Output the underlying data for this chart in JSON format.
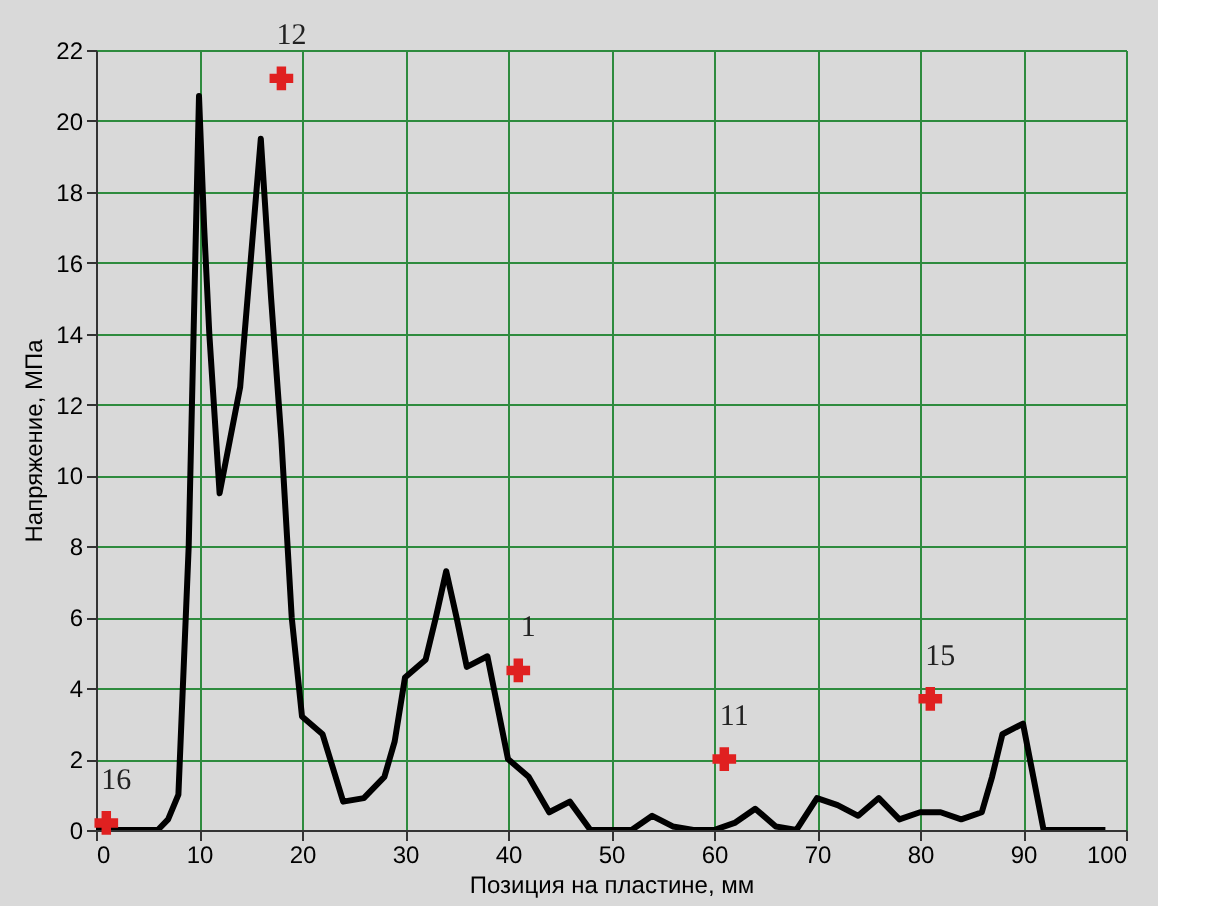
{
  "chart_data": {
    "type": "line",
    "xlabel": "Позиция на пластине, мм",
    "ylabel": "Напряжение, МПа",
    "xlim": [
      0,
      100
    ],
    "ylim": [
      0,
      22
    ],
    "xticks": [
      0,
      10,
      20,
      30,
      40,
      50,
      60,
      70,
      80,
      90,
      100
    ],
    "yticks": [
      0,
      2,
      4,
      6,
      8,
      10,
      12,
      14,
      16,
      18,
      20,
      22
    ],
    "grid": true,
    "series": [
      {
        "color": "#000000",
        "marker": "none",
        "line_style": "solid",
        "x": [
          0,
          2,
          4,
          6,
          7,
          8,
          9,
          10,
          10.5,
          11,
          12,
          13,
          14,
          15,
          16,
          17,
          18,
          19,
          20,
          22,
          24,
          26,
          28,
          29,
          30,
          32,
          33,
          34,
          35,
          36,
          38,
          40,
          42,
          44,
          46,
          48,
          50,
          52,
          54,
          56,
          58,
          60,
          62,
          64,
          66,
          68,
          70,
          72,
          74,
          76,
          78,
          80,
          82,
          84,
          86,
          87,
          88,
          90,
          91,
          92,
          94,
          96,
          98
        ],
        "values": [
          0,
          0,
          0,
          0,
          0.3,
          1,
          8,
          20.7,
          17,
          14,
          9.5,
          11,
          12.5,
          16,
          19.5,
          15,
          11,
          6,
          3.2,
          2.7,
          0.8,
          0.9,
          1.5,
          2.5,
          4.3,
          4.8,
          6,
          7.3,
          6,
          4.6,
          4.9,
          2,
          1.5,
          0.5,
          0.8,
          0,
          0,
          0,
          0.4,
          0.1,
          0,
          0,
          0.2,
          0.6,
          0.1,
          0,
          0.9,
          0.7,
          0.4,
          0.9,
          0.3,
          0.5,
          0.5,
          0.3,
          0.5,
          1.5,
          2.7,
          3,
          1.5,
          0,
          0,
          0,
          0
        ]
      },
      {
        "type": "scatter",
        "color": "#e02020",
        "marker": "cross",
        "x": [
          1,
          18,
          41,
          61,
          81
        ],
        "values": [
          0.2,
          21.2,
          4.5,
          2,
          3.7
        ]
      }
    ],
    "annotations": [
      {
        "text": "16",
        "x": 1,
        "y": 0.2
      },
      {
        "text": "12",
        "x": 18,
        "y": 21.2
      },
      {
        "text": "1",
        "x": 41,
        "y": 4.5
      },
      {
        "text": "11",
        "x": 61,
        "y": 2
      },
      {
        "text": "15",
        "x": 81,
        "y": 3.7
      }
    ]
  }
}
